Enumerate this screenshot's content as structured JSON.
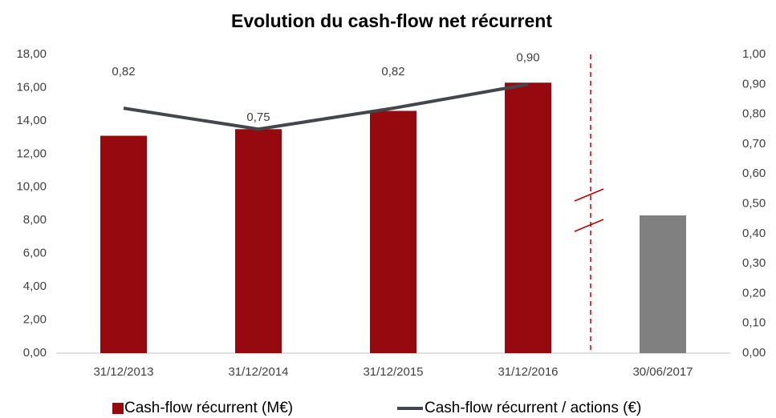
{
  "chart_data": {
    "type": "bar",
    "title": "Evolution du cash-flow net récurrent",
    "categories": [
      "31/12/2013",
      "31/12/2014",
      "31/12/2015",
      "31/12/2016",
      "30/06/2017"
    ],
    "series": [
      {
        "name": "Cash-flow récurrent (M€)",
        "type": "bar",
        "color": "#960a0f",
        "colors": [
          "#960a0f",
          "#960a0f",
          "#960a0f",
          "#960a0f",
          "#808080"
        ],
        "values": [
          13.1,
          13.5,
          14.6,
          16.3,
          8.3
        ]
      },
      {
        "name": "Cash-flow récurrent / actions (€)",
        "type": "line",
        "axis": "y2",
        "color": "#43464b",
        "values": [
          0.82,
          0.75,
          0.82,
          0.9,
          null
        ],
        "value_labels": [
          "0,82",
          "0,75",
          "0,82",
          "0,90",
          null
        ]
      }
    ],
    "ylim": [
      0,
      18
    ],
    "yticks": [
      {
        "value": 0,
        "label": "0,00"
      },
      {
        "value": 2,
        "label": "2,00"
      },
      {
        "value": 4,
        "label": "4,00"
      },
      {
        "value": 6,
        "label": "6,00"
      },
      {
        "value": 8,
        "label": "8,00"
      },
      {
        "value": 10,
        "label": "10,00"
      },
      {
        "value": 12,
        "label": "12,00"
      },
      {
        "value": 14,
        "label": "14,00"
      },
      {
        "value": 16,
        "label": "16,00"
      },
      {
        "value": 18,
        "label": "18,00"
      }
    ],
    "y2lim": [
      0,
      1
    ],
    "y2ticks": [
      {
        "value": 0,
        "label": "0,00"
      },
      {
        "value": 0.1,
        "label": "0,10"
      },
      {
        "value": 0.2,
        "label": "0,20"
      },
      {
        "value": 0.3,
        "label": "0,30"
      },
      {
        "value": 0.4,
        "label": "0,40"
      },
      {
        "value": 0.5,
        "label": "0,50"
      },
      {
        "value": 0.6,
        "label": "0,60"
      },
      {
        "value": 0.7,
        "label": "0,70"
      },
      {
        "value": 0.8,
        "label": "0,80"
      },
      {
        "value": 0.9,
        "label": "0,90"
      },
      {
        "value": 1,
        "label": "1,00"
      }
    ],
    "legend": "bottom"
  }
}
